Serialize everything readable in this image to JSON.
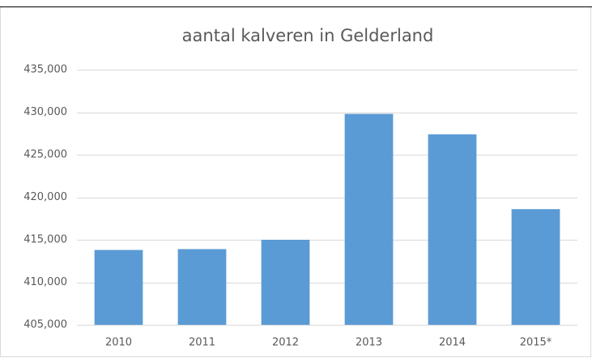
{
  "chart_data": {
    "type": "bar",
    "title": "aantal kalveren in Gelderland",
    "categories": [
      "2010",
      "2011",
      "2012",
      "2013",
      "2014",
      "2015*"
    ],
    "values": [
      413800,
      413900,
      415000,
      429800,
      427400,
      418600
    ],
    "color": "#5b9bd5",
    "ylim": [
      405000,
      435000
    ],
    "yticks": [
      {
        "value": 405000,
        "label": "405,000"
      },
      {
        "value": 410000,
        "label": "410,000"
      },
      {
        "value": 415000,
        "label": "415,000"
      },
      {
        "value": 420000,
        "label": "420,000"
      },
      {
        "value": 425000,
        "label": "425,000"
      },
      {
        "value": 430000,
        "label": "430,000"
      },
      {
        "value": 435000,
        "label": "435,000"
      }
    ],
    "grid": true
  }
}
